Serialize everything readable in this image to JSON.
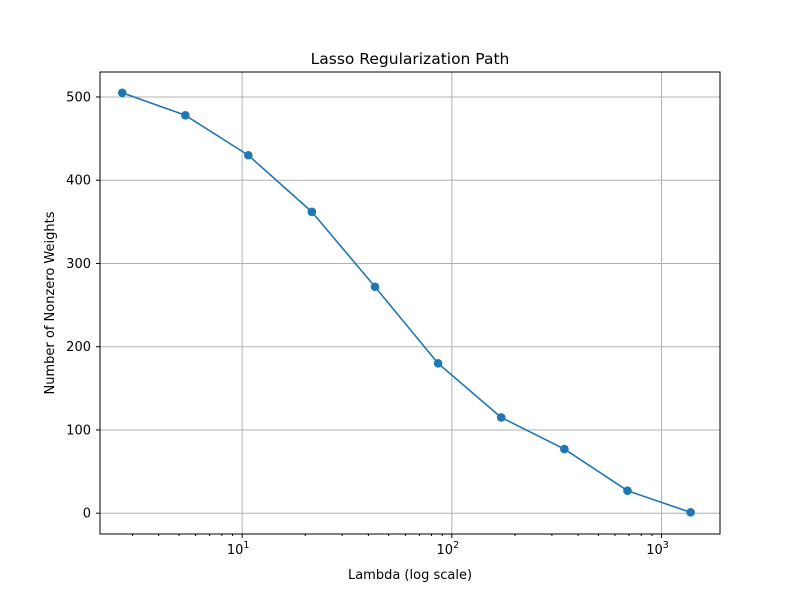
{
  "chart_data": {
    "type": "line",
    "title": "Lasso Regularization Path",
    "xlabel": "Lambda (log scale)",
    "ylabel": "Number of Nonzero Weights",
    "xscale": "log",
    "xlim": [
      2.1,
      1900
    ],
    "ylim": [
      -25,
      530
    ],
    "grid": true,
    "x_ticks": [
      {
        "value": 10,
        "base": "10",
        "exp": "1"
      },
      {
        "value": 100,
        "base": "10",
        "exp": "2"
      },
      {
        "value": 1000,
        "base": "10",
        "exp": "3"
      }
    ],
    "y_ticks": [
      0,
      100,
      200,
      300,
      400,
      500
    ],
    "series": [
      {
        "color": "#1f77b4",
        "marker": "circle",
        "x": [
          2.68,
          5.36,
          10.7,
          21.5,
          43.0,
          86.0,
          172,
          344,
          688,
          1376
        ],
        "y": [
          505,
          478,
          430,
          362,
          272,
          180,
          115,
          77,
          27,
          1
        ]
      }
    ]
  }
}
